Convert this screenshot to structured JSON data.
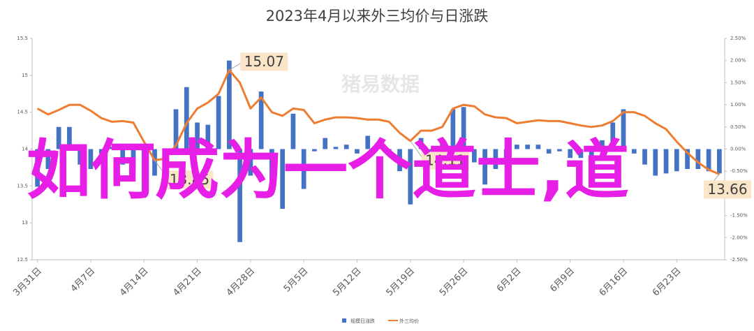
{
  "chart_data": {
    "type": "combo",
    "title": "2023年4月以来外三均价与日涨跌",
    "watermark": "猪易数据",
    "overlay_text": "如何成为一个道士,道",
    "categories": [
      "3月31日",
      null,
      null,
      null,
      null,
      "4月7日",
      null,
      null,
      null,
      null,
      "4月14日",
      null,
      null,
      null,
      null,
      "4月21日",
      null,
      null,
      null,
      null,
      "4月28日",
      null,
      null,
      null,
      null,
      "5月5日",
      null,
      null,
      null,
      null,
      "5月12日",
      null,
      null,
      null,
      null,
      "5月19日",
      null,
      null,
      null,
      null,
      "5月26日",
      null,
      null,
      null,
      null,
      "6月2日",
      null,
      null,
      null,
      null,
      "6月9日",
      null,
      null,
      null,
      null,
      "6月16日",
      null,
      null,
      null,
      null,
      "6月23日",
      null,
      null,
      null,
      null
    ],
    "series": [
      {
        "name": "规模日涨跌",
        "type": "bar",
        "axis": "y2",
        "color": "#4472c4",
        "values": [
          -0.85,
          -0.45,
          0.5,
          0.5,
          -0.35,
          -0.45,
          -0.1,
          0.05,
          -0.35,
          -0.45,
          -1.1,
          -0.6,
          -0.1,
          0.9,
          1.4,
          0.6,
          0.55,
          1.2,
          2.0,
          -2.1,
          -0.6,
          1.3,
          -0.75,
          -1.35,
          0.8,
          -0.9,
          -0.05,
          0.25,
          0.05,
          0.1,
          -0.1,
          0.3,
          0.02,
          -0.15,
          -0.5,
          -1.25,
          0.25,
          -0.15,
          0.15,
          0.9,
          0.95,
          -0.3,
          -0.8,
          -0.45,
          -0.3,
          0.1,
          0.1,
          0.1,
          -0.1,
          -0.05,
          -0.2,
          -0.2,
          -0.2,
          0.2,
          0.6,
          0.9,
          -0.1,
          -0.35,
          -0.6,
          -0.55,
          -0.5,
          -0.45,
          -0.45,
          -0.5,
          -0.55
        ]
      },
      {
        "name": "外三均价",
        "type": "line",
        "axis": "y",
        "color": "#ed7d31",
        "labeled_points": [
          11,
          18,
          35,
          64
        ],
        "values": [
          14.55,
          14.47,
          14.53,
          14.6,
          14.6,
          14.52,
          14.42,
          14.37,
          14.38,
          14.36,
          14.1,
          13.85,
          13.87,
          14.05,
          14.35,
          14.55,
          14.63,
          14.75,
          15.07,
          14.9,
          14.55,
          14.7,
          14.5,
          14.45,
          14.55,
          14.53,
          14.35,
          14.4,
          14.43,
          14.43,
          14.42,
          14.4,
          14.4,
          14.37,
          14.22,
          14.11,
          14.25,
          14.25,
          14.3,
          14.55,
          14.6,
          14.58,
          14.47,
          14.43,
          14.42,
          14.35,
          14.37,
          14.39,
          14.38,
          14.38,
          14.35,
          14.32,
          14.3,
          14.32,
          14.38,
          14.5,
          14.5,
          14.45,
          14.35,
          14.27,
          14.1,
          13.95,
          13.82,
          13.72,
          13.66
        ]
      }
    ],
    "ylim": [
      12.5,
      15.5
    ],
    "yticks": [
      12.5,
      13,
      13.5,
      14,
      14.5,
      15,
      15.5
    ],
    "y2lim": [
      -2.5,
      2.5
    ],
    "y2ticks": [
      {
        "value": -2.5,
        "label": "-2.50%"
      },
      {
        "value": -2,
        "label": "-2.00%"
      },
      {
        "value": -1.5,
        "label": "-1.50%"
      },
      {
        "value": -1,
        "label": "-1.00%"
      },
      {
        "value": -0.5,
        "label": "-0.50%"
      },
      {
        "value": 0,
        "label": "0.00%"
      },
      {
        "value": 0.5,
        "label": "0.50%"
      },
      {
        "value": 1,
        "label": "1.00%"
      },
      {
        "value": 1.5,
        "label": "1.50%"
      },
      {
        "value": 2,
        "label": "2.00%"
      },
      {
        "value": 2.5,
        "label": "2.50%"
      }
    ],
    "legend": "bottom"
  }
}
